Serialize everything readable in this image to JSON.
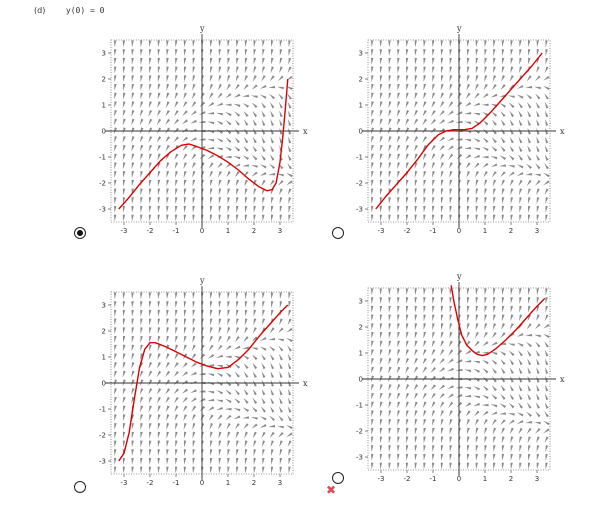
{
  "question": {
    "label": "(d)",
    "condition": "y(0) = 0"
  },
  "choices": [
    {
      "selected": true
    },
    {
      "selected": false
    },
    {
      "selected": false
    },
    {
      "selected": false
    }
  ],
  "feedback": {
    "icon": "cross-icon",
    "color": "#e04b5b",
    "symbol": "✖"
  },
  "chart_data": [
    {
      "type": "line",
      "xlabel": "x",
      "ylabel": "y",
      "xlim": [
        -3.5,
        3.5
      ],
      "ylim": [
        -3.5,
        3.5
      ],
      "xticks": [
        "-3",
        "-2",
        "-1",
        "0",
        "1",
        "2",
        "3"
      ],
      "yticks": [
        "-3",
        "-2",
        "-1",
        "0",
        "1",
        "2",
        "3"
      ],
      "series": [
        {
          "color": "#dd0000",
          "x": [
            -3.2,
            -2.8,
            -2.4,
            -2.0,
            -1.6,
            -1.2,
            -0.8,
            -0.5,
            -0.2,
            0.2,
            0.6,
            1.0,
            1.4,
            1.8,
            2.2,
            2.5,
            2.7,
            2.85,
            3.0,
            3.1,
            3.2,
            3.3
          ],
          "y": [
            -3.0,
            -2.55,
            -2.05,
            -1.6,
            -1.15,
            -0.8,
            -0.55,
            -0.5,
            -0.6,
            -0.75,
            -0.95,
            -1.2,
            -1.5,
            -1.85,
            -2.15,
            -2.3,
            -2.25,
            -2.0,
            -1.2,
            -0.3,
            0.8,
            2.0
          ]
        }
      ]
    },
    {
      "type": "line",
      "xlabel": "x",
      "ylabel": "y",
      "xlim": [
        -3.5,
        3.5
      ],
      "ylim": [
        -3.5,
        3.5
      ],
      "xticks": [
        "-3",
        "-2",
        "-1",
        "0",
        "1",
        "2",
        "3"
      ],
      "yticks": [
        "-3",
        "-2",
        "-1",
        "0",
        "1",
        "2",
        "3"
      ],
      "series": [
        {
          "color": "#dd0000",
          "x": [
            -3.2,
            -2.8,
            -2.4,
            -2.0,
            -1.6,
            -1.2,
            -0.8,
            -0.5,
            -0.2,
            0.0,
            0.2,
            0.5,
            0.8,
            1.2,
            1.6,
            2.0,
            2.4,
            2.8,
            3.2
          ],
          "y": [
            -3.0,
            -2.5,
            -2.05,
            -1.6,
            -1.1,
            -0.55,
            -0.15,
            0.0,
            0.05,
            0.05,
            0.05,
            0.1,
            0.3,
            0.7,
            1.15,
            1.6,
            2.05,
            2.5,
            3.0
          ]
        }
      ]
    },
    {
      "type": "line",
      "xlabel": "x",
      "ylabel": "y",
      "xlim": [
        -3.5,
        3.5
      ],
      "ylim": [
        -3.5,
        3.5
      ],
      "xticks": [
        "-3",
        "-2",
        "-1",
        "0",
        "1",
        "2",
        "3"
      ],
      "yticks": [
        "-3",
        "-2",
        "-1",
        "0",
        "1",
        "2",
        "3"
      ],
      "series": [
        {
          "color": "#dd0000",
          "x": [
            -3.2,
            -3.0,
            -2.8,
            -2.6,
            -2.4,
            -2.2,
            -2.0,
            -1.8,
            -1.4,
            -1.0,
            -0.6,
            -0.2,
            0.2,
            0.6,
            1.0,
            1.4,
            1.8,
            2.2,
            2.6,
            3.0,
            3.3
          ],
          "y": [
            -3.0,
            -2.7,
            -1.9,
            -0.6,
            0.6,
            1.3,
            1.55,
            1.55,
            1.4,
            1.2,
            1.0,
            0.8,
            0.65,
            0.55,
            0.6,
            0.9,
            1.3,
            1.8,
            2.25,
            2.7,
            3.0
          ]
        }
      ]
    },
    {
      "type": "line",
      "xlabel": "x",
      "ylabel": "y",
      "xlim": [
        -3.5,
        3.5
      ],
      "ylim": [
        -3.5,
        3.5
      ],
      "xticks": [
        "-3",
        "-2",
        "-1",
        "0",
        "1",
        "2",
        "3"
      ],
      "yticks": [
        "-3",
        "-2",
        "-1",
        "0",
        "1",
        "2",
        "3"
      ],
      "series": [
        {
          "color": "#dd0000",
          "x": [
            -0.3,
            -0.2,
            -0.05,
            0.1,
            0.3,
            0.5,
            0.7,
            0.9,
            1.1,
            1.4,
            1.8,
            2.2,
            2.6,
            3.0,
            3.3
          ],
          "y": [
            3.6,
            3.0,
            2.3,
            1.7,
            1.3,
            1.1,
            0.95,
            0.9,
            0.95,
            1.15,
            1.5,
            1.9,
            2.35,
            2.8,
            3.1
          ]
        }
      ]
    }
  ]
}
